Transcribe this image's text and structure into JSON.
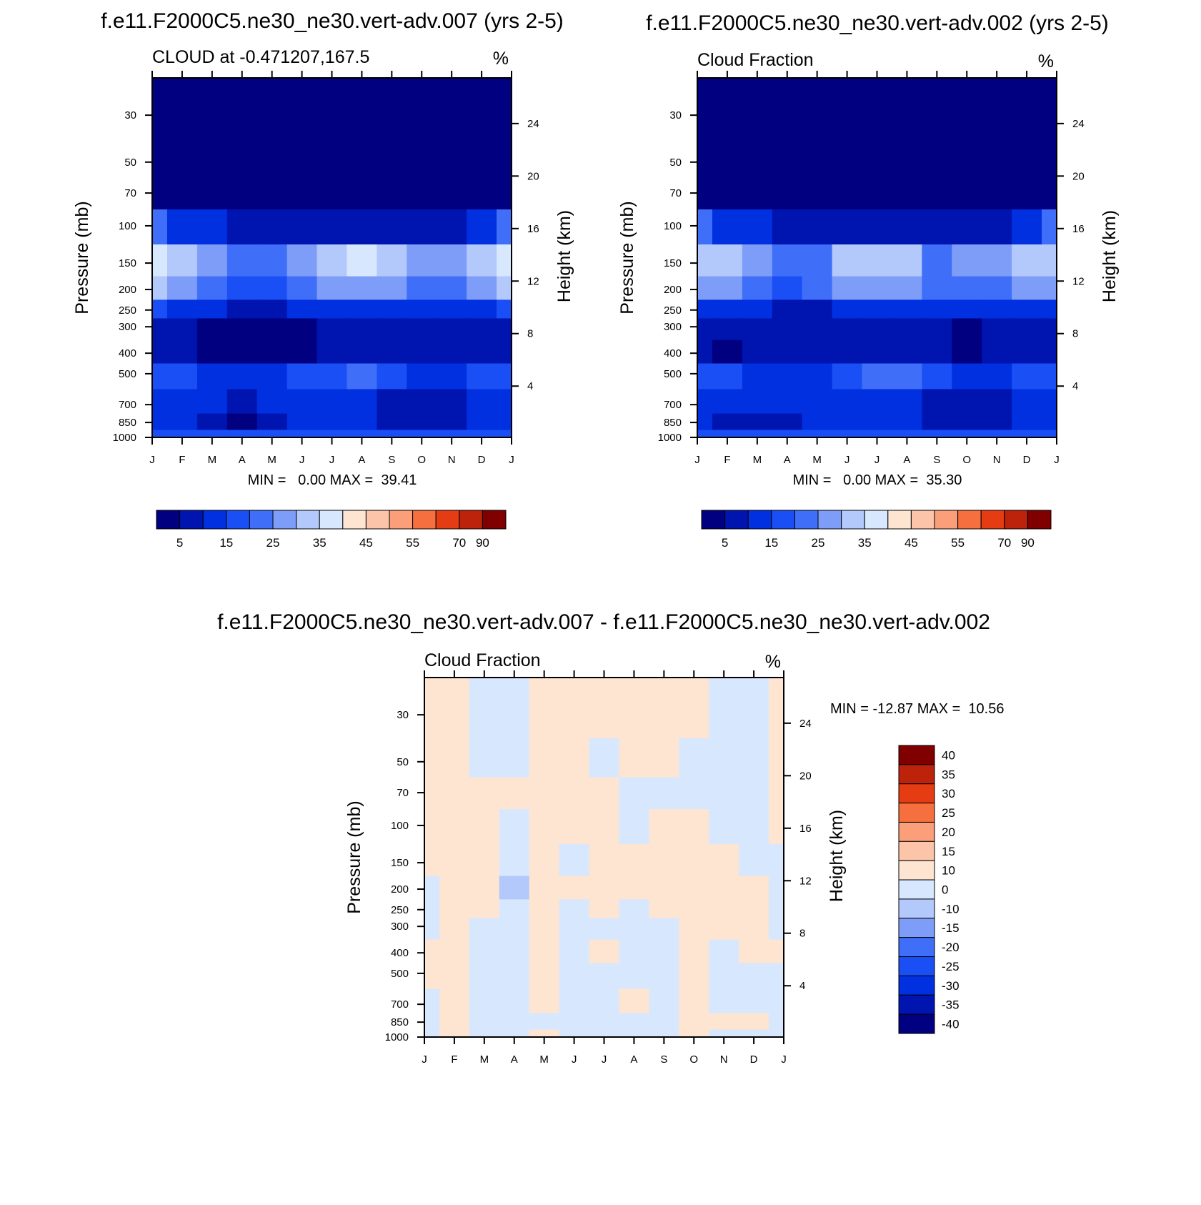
{
  "chart_data": [
    {
      "type": "heatmap",
      "title": "f.e11.F2000C5.ne30_ne30.vert-adv.007 (yrs 2-5)",
      "subtitle_left": "CLOUD at -0.471207,167.5",
      "units": "%",
      "ylabel": "Pressure (mb)",
      "ylabel_right": "Height (km)",
      "x_ticks": [
        "J",
        "F",
        "M",
        "A",
        "M",
        "J",
        "J",
        "A",
        "S",
        "O",
        "N",
        "D",
        "J"
      ],
      "y_ticks": [
        "30",
        "50",
        "70",
        "100",
        "150",
        "200",
        "250",
        "300",
        "400",
        "500",
        "700",
        "850",
        "1000"
      ],
      "y_ticks_right": [
        "24",
        "20",
        "16",
        "12",
        "8",
        "4"
      ],
      "min_max_text": "MIN =   0.00 MAX =  39.41",
      "colorbar_labels": [
        "5",
        "15",
        "25",
        "35",
        "45",
        "55",
        "70",
        "90"
      ],
      "colorbar_colors": [
        "#000080",
        "#0015b0",
        "#0030e0",
        "#1a4ff5",
        "#3f6ff8",
        "#7e9df8",
        "#b3c8fb",
        "#d7e8fe",
        "#fde5d2",
        "#fcc5a9",
        "#fb9f7a",
        "#f6703f",
        "#e63c14",
        "#bd220b",
        "#800000"
      ],
      "profile": [
        {
          "p": 30,
          "v": [
            0,
            0,
            0,
            0,
            0,
            0,
            0,
            0,
            0,
            0,
            0,
            0,
            0
          ]
        },
        {
          "p": 50,
          "v": [
            0,
            0,
            0,
            0,
            0,
            0,
            0,
            0,
            0,
            0,
            0,
            0,
            0
          ]
        },
        {
          "p": 70,
          "v": [
            2,
            1,
            0,
            0,
            0,
            0,
            0,
            0,
            0,
            0,
            0,
            1,
            2
          ]
        },
        {
          "p": 100,
          "v": [
            22,
            14,
            10,
            8,
            6,
            5,
            5,
            5,
            5,
            6,
            9,
            14,
            22
          ]
        },
        {
          "p": 150,
          "v": [
            39,
            32,
            25,
            22,
            22,
            27,
            33,
            35,
            33,
            28,
            27,
            33,
            39
          ]
        },
        {
          "p": 200,
          "v": [
            31,
            27,
            22,
            18,
            18,
            22,
            26,
            28,
            25,
            20,
            20,
            25,
            31
          ]
        },
        {
          "p": 250,
          "v": [
            16,
            13,
            11,
            9,
            9,
            11,
            13,
            14,
            12,
            10,
            11,
            13,
            16
          ]
        },
        {
          "p": 300,
          "v": [
            7,
            5,
            4,
            2,
            4,
            4,
            6,
            6,
            6,
            6,
            6,
            6,
            7
          ]
        },
        {
          "p": 400,
          "v": [
            6,
            5,
            4,
            2,
            4,
            3,
            5,
            6,
            6,
            6,
            6,
            6,
            6
          ]
        },
        {
          "p": 500,
          "v": [
            19,
            16,
            13,
            12,
            14,
            17,
            19,
            20,
            18,
            14,
            12,
            15,
            19
          ]
        },
        {
          "p": 700,
          "v": [
            13,
            12,
            10,
            8,
            10,
            12,
            13,
            12,
            9,
            7,
            7,
            11,
            13
          ]
        },
        {
          "p": 850,
          "v": [
            12,
            10,
            6,
            4,
            7,
            11,
            12,
            11,
            7,
            5,
            6,
            11,
            12
          ]
        },
        {
          "p": 1000,
          "v": [
            16,
            16,
            15,
            15,
            15,
            16,
            16,
            16,
            15,
            15,
            15,
            16,
            16
          ]
        }
      ]
    },
    {
      "type": "heatmap",
      "title": "f.e11.F2000C5.ne30_ne30.vert-adv.002 (yrs 2-5)",
      "subtitle_left": "Cloud Fraction",
      "units": "%",
      "ylabel": "Pressure (mb)",
      "ylabel_right": "Height (km)",
      "x_ticks": [
        "J",
        "F",
        "M",
        "A",
        "M",
        "J",
        "J",
        "A",
        "S",
        "O",
        "N",
        "D",
        "J"
      ],
      "y_ticks": [
        "30",
        "50",
        "70",
        "100",
        "150",
        "200",
        "250",
        "300",
        "400",
        "500",
        "700",
        "850",
        "1000"
      ],
      "y_ticks_right": [
        "24",
        "20",
        "16",
        "12",
        "8",
        "4"
      ],
      "min_max_text": "MIN =   0.00 MAX =  35.30",
      "colorbar_labels": [
        "5",
        "15",
        "25",
        "35",
        "45",
        "55",
        "70",
        "90"
      ],
      "colorbar_colors": [
        "#000080",
        "#0015b0",
        "#0030e0",
        "#1a4ff5",
        "#3f6ff8",
        "#7e9df8",
        "#b3c8fb",
        "#d7e8fe",
        "#fde5d2",
        "#fcc5a9",
        "#fb9f7a",
        "#f6703f",
        "#e63c14",
        "#bd220b",
        "#800000"
      ],
      "profile": [
        {
          "p": 30,
          "v": [
            0,
            0,
            0,
            0,
            0,
            0,
            0,
            0,
            0,
            0,
            0,
            0,
            0
          ]
        },
        {
          "p": 50,
          "v": [
            0,
            0,
            0,
            0,
            0,
            0,
            0,
            0,
            0,
            0,
            0,
            0,
            0
          ]
        },
        {
          "p": 70,
          "v": [
            2,
            1,
            0,
            0,
            0,
            0,
            0,
            0,
            0,
            0,
            0,
            1,
            2
          ]
        },
        {
          "p": 100,
          "v": [
            20,
            14,
            10,
            8,
            6,
            5,
            5,
            5,
            5,
            6,
            9,
            14,
            20
          ]
        },
        {
          "p": 150,
          "v": [
            33,
            32,
            27,
            20,
            24,
            30,
            32,
            30,
            24,
            26,
            28,
            32,
            33
          ]
        },
        {
          "p": 200,
          "v": [
            27,
            28,
            24,
            17,
            20,
            26,
            28,
            26,
            20,
            21,
            23,
            27,
            27
          ]
        },
        {
          "p": 250,
          "v": [
            14,
            13,
            11,
            9,
            9,
            11,
            13,
            14,
            12,
            10,
            11,
            13,
            14
          ]
        },
        {
          "p": 300,
          "v": [
            6,
            5,
            5,
            5,
            5,
            5,
            5,
            5,
            6,
            4,
            5,
            5,
            6
          ]
        },
        {
          "p": 400,
          "v": [
            6,
            3,
            5,
            5,
            6,
            6,
            6,
            6,
            6,
            3,
            5,
            6,
            6
          ]
        },
        {
          "p": 500,
          "v": [
            19,
            16,
            13,
            12,
            14,
            19,
            20,
            21,
            18,
            14,
            12,
            15,
            19
          ]
        },
        {
          "p": 700,
          "v": [
            13,
            10,
            10,
            10,
            12,
            13,
            13,
            12,
            9,
            7,
            8,
            11,
            13
          ]
        },
        {
          "p": 850,
          "v": [
            12,
            7,
            8,
            9,
            11,
            12,
            12,
            11,
            7,
            5,
            7,
            11,
            12
          ]
        },
        {
          "p": 1000,
          "v": [
            16,
            16,
            15,
            15,
            15,
            16,
            16,
            16,
            15,
            15,
            15,
            16,
            16
          ]
        }
      ]
    },
    {
      "type": "heatmap",
      "title": "f.e11.F2000C5.ne30_ne30.vert-adv.007 - f.e11.F2000C5.ne30_ne30.vert-adv.002",
      "subtitle_left": "Cloud Fraction",
      "units": "%",
      "ylabel": "Pressure (mb)",
      "ylabel_right": "Height (km)",
      "x_ticks": [
        "J",
        "F",
        "M",
        "A",
        "M",
        "J",
        "J",
        "A",
        "S",
        "O",
        "N",
        "D",
        "J"
      ],
      "y_ticks": [
        "30",
        "50",
        "70",
        "100",
        "150",
        "200",
        "250",
        "300",
        "400",
        "500",
        "700",
        "850",
        "1000"
      ],
      "y_ticks_right": [
        "24",
        "20",
        "16",
        "12",
        "8",
        "4"
      ],
      "min_max_text": "MIN = -12.87 MAX =  10.56",
      "colorbar_labels": [
        "40",
        "35",
        "30",
        "25",
        "20",
        "15",
        "10",
        "0",
        "-10",
        "-15",
        "-20",
        "-25",
        "-30",
        "-35",
        "-40"
      ],
      "colorbar_colors": [
        "#800000",
        "#bd220b",
        "#e63c14",
        "#f6703f",
        "#fb9f7a",
        "#fcc5a9",
        "#fde5d2",
        "#d7e8fe",
        "#b3c8fb",
        "#7e9df8",
        "#3f6ff8",
        "#1a4ff5",
        "#0030e0",
        "#0015b0",
        "#000080"
      ],
      "profile": [
        {
          "p": 30,
          "v": [
            1,
            1,
            -1,
            -1,
            1,
            1,
            1,
            1,
            1,
            1,
            -1,
            -1,
            1
          ]
        },
        {
          "p": 50,
          "v": [
            1,
            1,
            -1,
            -1,
            1,
            1,
            -1,
            1,
            1,
            -1,
            -1,
            -1,
            1
          ]
        },
        {
          "p": 70,
          "v": [
            1,
            1,
            1,
            1,
            1,
            1,
            1,
            -1,
            -1,
            -1,
            -1,
            -1,
            1
          ]
        },
        {
          "p": 100,
          "v": [
            1,
            1,
            1,
            -1,
            1,
            1,
            1,
            -1,
            1,
            1,
            -1,
            -1,
            1
          ]
        },
        {
          "p": 150,
          "v": [
            1,
            1,
            1,
            -1,
            1,
            -1,
            1,
            1,
            1,
            1,
            1,
            -1,
            -1
          ]
        },
        {
          "p": 200,
          "v": [
            -1,
            3,
            1,
            -12,
            1,
            1,
            1,
            1,
            1,
            1,
            1,
            1,
            -1
          ]
        },
        {
          "p": 250,
          "v": [
            -1,
            1,
            1,
            -1,
            1,
            -1,
            1,
            -1,
            1,
            1,
            1,
            1,
            -1
          ]
        },
        {
          "p": 300,
          "v": [
            -1,
            1,
            -1,
            -1,
            1,
            -1,
            -1,
            -1,
            -1,
            1,
            1,
            1,
            -1
          ]
        },
        {
          "p": 400,
          "v": [
            1,
            1,
            -1,
            -1,
            1,
            -1,
            2,
            -1,
            -1,
            1,
            -1,
            1,
            1
          ]
        },
        {
          "p": 500,
          "v": [
            1,
            1,
            -1,
            -1,
            1,
            -1,
            -1,
            -1,
            -8,
            1,
            -1,
            -1,
            -1
          ]
        },
        {
          "p": 700,
          "v": [
            -1,
            1,
            -1,
            -1,
            1,
            -1,
            -1,
            2,
            -1,
            1,
            -1,
            -1,
            -1
          ]
        },
        {
          "p": 850,
          "v": [
            -1,
            1,
            -1,
            -1,
            -1,
            -1,
            -1,
            -1,
            -1,
            1,
            1,
            1,
            -1
          ]
        },
        {
          "p": 1000,
          "v": [
            -1,
            1,
            -1,
            -1,
            1,
            -1,
            -1,
            -1,
            -1,
            1,
            -1,
            -1,
            -1
          ]
        }
      ]
    }
  ]
}
